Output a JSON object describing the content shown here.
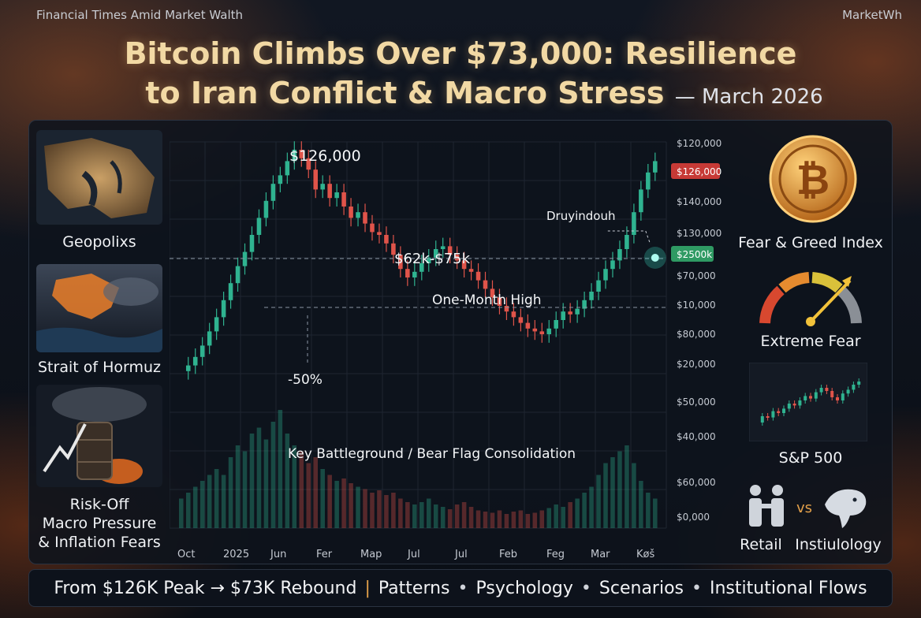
{
  "header": {
    "source_left": "Financial Times Amid Market Walth",
    "source_right": "MarketWh",
    "title_line1": "Bitcoin Climbs Over $73,000: Resilience",
    "title_line2": "to Iran Conflict & Macro Stress",
    "title_suffix": "— March 2026"
  },
  "left_panel": {
    "items": [
      {
        "label": "Geopolixs",
        "icon": "middle-east-map-icon"
      },
      {
        "label": "Strait of Hormuz",
        "icon": "storm-map-icon"
      },
      {
        "label": "Risk-Off\nMacro Pressure\n& Inflation Fears",
        "icon": "oil-barrel-fire-icon"
      }
    ]
  },
  "right_panel": {
    "fear_greed_label": "Fear & Greed Index",
    "fear_greed_value_label": "Extreme Fear",
    "sp500_label": "S&P 500",
    "retail_label": "Retail",
    "vs_label": "vs",
    "institutional_label": "Instiulology",
    "colors": {
      "gauge_red": "#d8482f",
      "gauge_orange": "#e58b2f",
      "gauge_yellow": "#d9c13a",
      "gauge_green": "#62b04a",
      "coin": "#e0962a"
    }
  },
  "chart_data": {
    "type": "candlestick",
    "title": "",
    "x_tick_labels": [
      "Oct",
      "2025",
      "Jun",
      "Fer",
      "Map",
      "Jul",
      "Jul",
      "Feb",
      "Feg",
      "Mar",
      "Køš"
    ],
    "y_tick_labels": [
      "$120,000",
      "$126,000",
      "$140,000",
      "$130,000",
      "$2500k",
      "$70,000",
      "$10,000",
      "$80,000",
      "$20,000",
      "$50,000",
      "$40,000",
      "$60,000",
      "$0,000"
    ],
    "highlighted_ticks": {
      "peak_price": "$126,000",
      "current_price": "$2500k"
    },
    "annotations": {
      "peak": "$126,000",
      "range": "$62k-$75k",
      "one_month_high": "One-Month High",
      "drawdown_pct": "-50%",
      "pattern": "Key Battleground / Bear Flag Consolidation",
      "pointer": "Druyindouh"
    },
    "colors": {
      "up": "#2fb390",
      "down": "#e0544a",
      "peak_tag": "#c73a36",
      "current_tag": "#2f9a63"
    },
    "price_series_relative": [
      0.22,
      0.24,
      0.27,
      0.31,
      0.36,
      0.41,
      0.47,
      0.53,
      0.59,
      0.64,
      0.7,
      0.76,
      0.82,
      0.88,
      0.91,
      0.96,
      1.0,
      0.97,
      0.93,
      0.86,
      0.88,
      0.83,
      0.85,
      0.8,
      0.76,
      0.78,
      0.74,
      0.71,
      0.7,
      0.67,
      0.63,
      0.58,
      0.55,
      0.57,
      0.6,
      0.62,
      0.65,
      0.66,
      0.63,
      0.61,
      0.58,
      0.57,
      0.54,
      0.51,
      0.48,
      0.45,
      0.43,
      0.41,
      0.39,
      0.37,
      0.36,
      0.35,
      0.37,
      0.4,
      0.43,
      0.42,
      0.44,
      0.47,
      0.5,
      0.54,
      0.58,
      0.61,
      0.65,
      0.7,
      0.78,
      0.86,
      0.92,
      0.96
    ],
    "volume_relative": [
      0.25,
      0.3,
      0.35,
      0.4,
      0.45,
      0.5,
      0.45,
      0.6,
      0.7,
      0.65,
      0.8,
      0.85,
      0.75,
      0.9,
      1.0,
      0.8,
      0.7,
      0.65,
      0.55,
      0.6,
      0.5,
      0.45,
      0.4,
      0.42,
      0.38,
      0.35,
      0.33,
      0.3,
      0.32,
      0.28,
      0.3,
      0.25,
      0.22,
      0.2,
      0.22,
      0.25,
      0.2,
      0.18,
      0.16,
      0.2,
      0.22,
      0.18,
      0.15,
      0.14,
      0.13,
      0.15,
      0.12,
      0.14,
      0.15,
      0.12,
      0.13,
      0.15,
      0.17,
      0.2,
      0.18,
      0.22,
      0.25,
      0.3,
      0.35,
      0.45,
      0.55,
      0.6,
      0.65,
      0.7,
      0.55,
      0.4,
      0.3,
      0.25
    ]
  },
  "footer": {
    "left": "From $126K Peak → $73K Rebound",
    "items": [
      "Patterns",
      "Psychology",
      "Scenarios",
      "Institutional Flows"
    ]
  }
}
